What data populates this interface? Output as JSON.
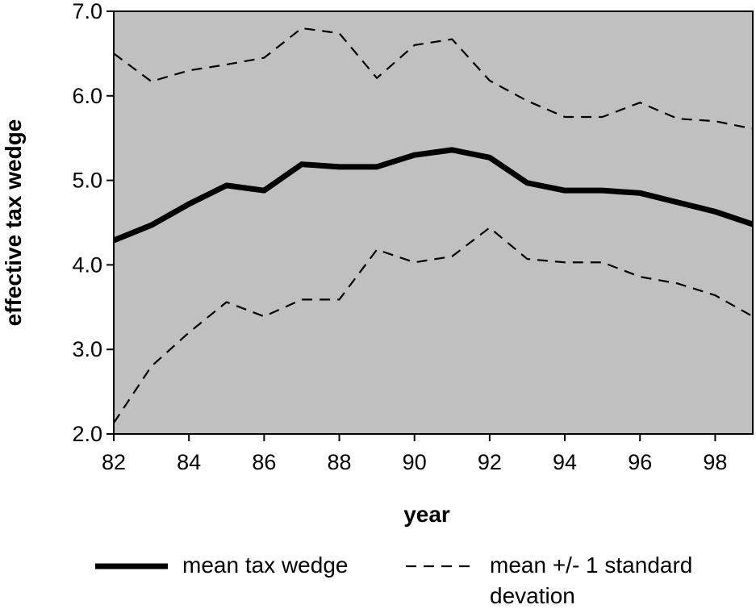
{
  "chart_data": {
    "type": "line",
    "title": "",
    "xlabel": "year",
    "ylabel": "effective tax wedge",
    "xlim": [
      82,
      99
    ],
    "ylim": [
      2.0,
      7.0
    ],
    "x_ticks": [
      "82",
      "84",
      "86",
      "88",
      "90",
      "92",
      "94",
      "96",
      "98"
    ],
    "y_ticks": [
      "2.0",
      "3.0",
      "4.0",
      "5.0",
      "6.0",
      "7.0"
    ],
    "grid": false,
    "plot_background": "#c0c0c0",
    "legend_position": "bottom",
    "x": [
      82,
      83,
      84,
      85,
      86,
      87,
      88,
      89,
      90,
      91,
      92,
      93,
      94,
      95,
      96,
      97,
      98,
      99
    ],
    "series": [
      {
        "name": "mean tax wedge",
        "style": "solid-thick",
        "color": "#000000",
        "values": [
          4.29,
          4.47,
          4.72,
          4.94,
          4.88,
          5.19,
          5.16,
          5.16,
          5.3,
          5.36,
          5.27,
          4.97,
          4.88,
          4.88,
          4.85,
          4.74,
          4.63,
          4.48
        ]
      },
      {
        "name": "mean +/- 1 standard deviation",
        "style": "dashed",
        "color": "#000000",
        "values": [
          6.5,
          6.17,
          6.3,
          6.37,
          6.45,
          6.8,
          6.74,
          6.21,
          6.6,
          6.67,
          6.18,
          5.94,
          5.75,
          5.75,
          5.92,
          5.73,
          5.7,
          5.61
        ]
      },
      {
        "name": "",
        "style": "dashed",
        "color": "#000000",
        "values": [
          2.13,
          2.8,
          3.2,
          3.56,
          3.39,
          3.59,
          3.59,
          4.18,
          4.03,
          4.1,
          4.44,
          4.07,
          4.03,
          4.03,
          3.86,
          3.78,
          3.64,
          3.39
        ]
      }
    ],
    "legend": {
      "mean_label": "mean tax wedge",
      "sd_label_line1": "mean +/- 1 standard",
      "sd_label_line2": "devation"
    }
  }
}
